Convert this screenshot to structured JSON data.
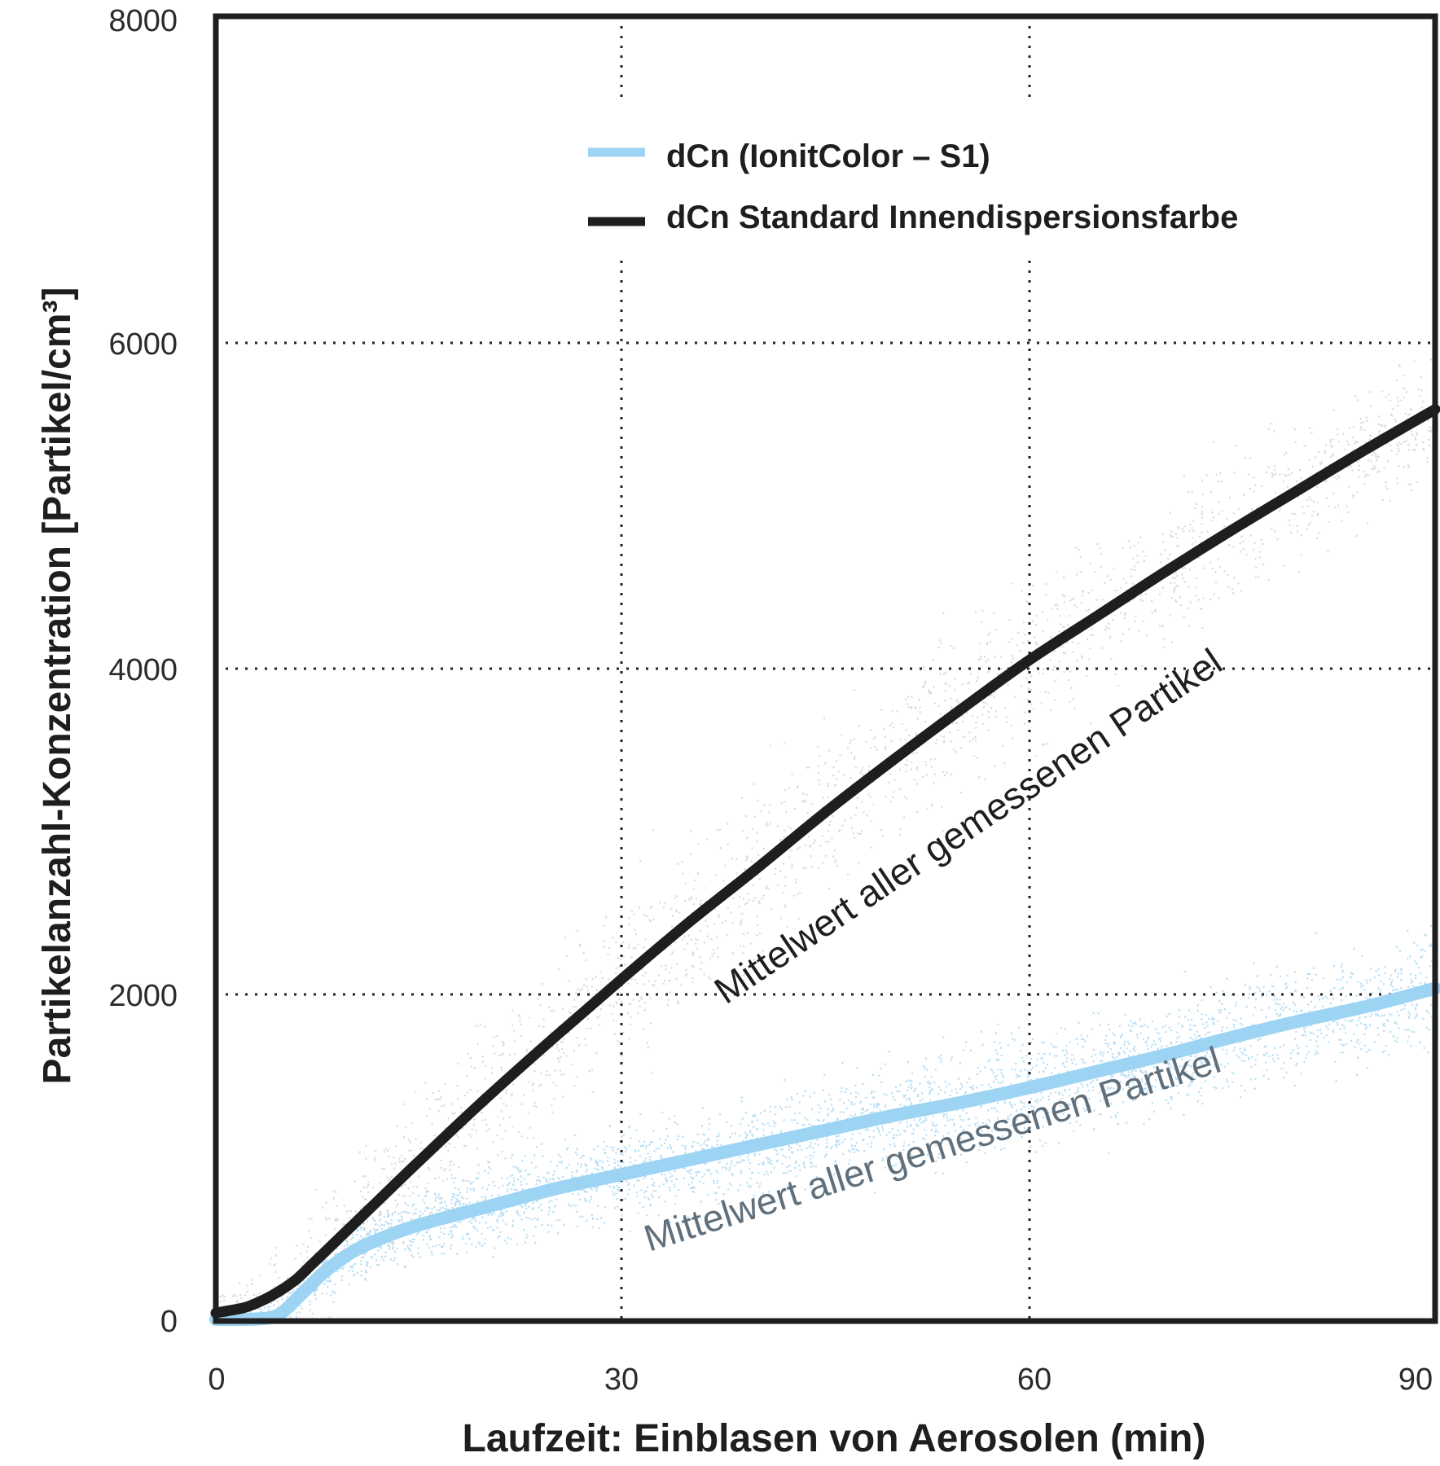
{
  "chart_data": {
    "type": "line",
    "title": "",
    "xlabel": "Laufzeit: Einblasen von Aerosolen (min)",
    "ylabel": "Partikelanzahl-Konzentration [Partikel/cm³]",
    "xlim": [
      0,
      90
    ],
    "ylim": [
      0,
      8000
    ],
    "xticks": [
      "0",
      "30",
      "60",
      "90"
    ],
    "yticks": [
      "0",
      "2000",
      "4000",
      "6000",
      "8000"
    ],
    "grid": "dotted",
    "legend_position": "top-right",
    "series": [
      {
        "name": "dCn (IonitColor – S1)",
        "color": "#9dd4f4",
        "scatter_color": "#7fc4ec",
        "x": [
          0,
          2,
          4,
          5,
          6,
          7,
          8,
          10,
          12,
          15,
          20,
          25,
          30,
          35,
          40,
          45,
          50,
          55,
          60,
          65,
          70,
          75,
          80,
          85,
          90
        ],
        "y": [
          10,
          10,
          20,
          60,
          140,
          220,
          300,
          420,
          500,
          590,
          700,
          810,
          900,
          990,
          1080,
          1170,
          1260,
          1340,
          1430,
          1530,
          1630,
          1740,
          1840,
          1930,
          2040
        ],
        "spread": [
          60,
          100,
          130,
          150,
          170,
          190,
          210,
          250,
          280,
          310,
          340,
          360,
          380,
          390,
          400,
          410,
          420,
          430,
          440,
          450,
          460,
          470,
          480,
          480,
          480
        ]
      },
      {
        "name": "dCn Standard Innendispersionsfarbe",
        "color": "#1e1e1e",
        "scatter_color": "#b8b8b8",
        "x": [
          0,
          2,
          3,
          4,
          5,
          6,
          7,
          8,
          10,
          12,
          15,
          20,
          25,
          30,
          35,
          40,
          45,
          50,
          55,
          60,
          65,
          70,
          75,
          80,
          85,
          90
        ],
        "y": [
          50,
          80,
          110,
          150,
          200,
          260,
          340,
          420,
          580,
          740,
          980,
          1370,
          1740,
          2100,
          2450,
          2780,
          3120,
          3440,
          3750,
          4050,
          4320,
          4590,
          4850,
          5100,
          5350,
          5590
        ],
        "spread": [
          200,
          250,
          300,
          340,
          380,
          420,
          460,
          500,
          560,
          600,
          650,
          680,
          700,
          700,
          700,
          700,
          700,
          690,
          680,
          670,
          660,
          640,
          620,
          600,
          580,
          560
        ]
      }
    ],
    "annotations": [
      {
        "text": "Mittelwert aller gemessenen Partikel",
        "series": 1,
        "color": "#1e1e1e"
      },
      {
        "text": "Mittelwert aller gemessenen Partikel",
        "series": 0,
        "color": "#5f6f7c"
      }
    ]
  }
}
